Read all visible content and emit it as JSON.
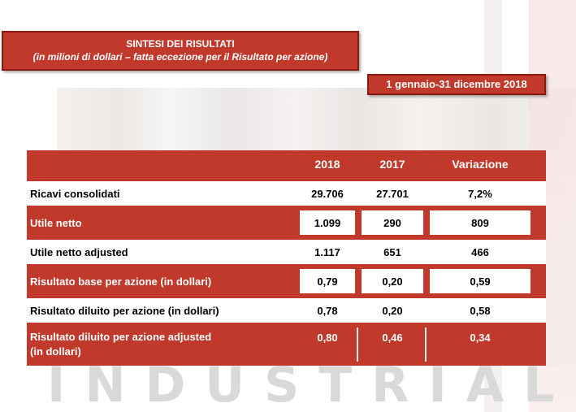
{
  "title": {
    "main": "SINTESI DEI RISULTATI",
    "subtitle": "(in milioni di dollari – fatta eccezione per il Risultato per azione)"
  },
  "period": "1 gennaio-31 dicembre 2018",
  "watermark": "INDUSTRIAL",
  "table": {
    "headers": [
      "",
      "2018",
      "2017",
      "Variazione"
    ],
    "rows": [
      {
        "label": "Ricavi consolidati",
        "y2018": "29.706",
        "y2017": "27.701",
        "variation": "7,2%"
      },
      {
        "label": "Utile netto",
        "y2018": "1.099",
        "y2017": "290",
        "variation": "809"
      },
      {
        "label": "Utile netto adjusted",
        "y2018": "1.117",
        "y2017": "651",
        "variation": "466"
      },
      {
        "label": "Risultato base per azione (in dollari)",
        "y2018": "0,79",
        "y2017": "0,20",
        "variation": "0,59"
      },
      {
        "label": "Risultato diluito per azione (in dollari)",
        "y2018": "0,78",
        "y2017": "0,20",
        "variation": "0,58"
      },
      {
        "label": "Risultato diluito per azione adjusted",
        "label_line2": "(in dollari)",
        "y2018": "0,80",
        "y2017": "0,46",
        "variation": "0,34"
      }
    ]
  },
  "colors": {
    "accent": "#c0392b",
    "accent_dark": "#8b1a12"
  }
}
